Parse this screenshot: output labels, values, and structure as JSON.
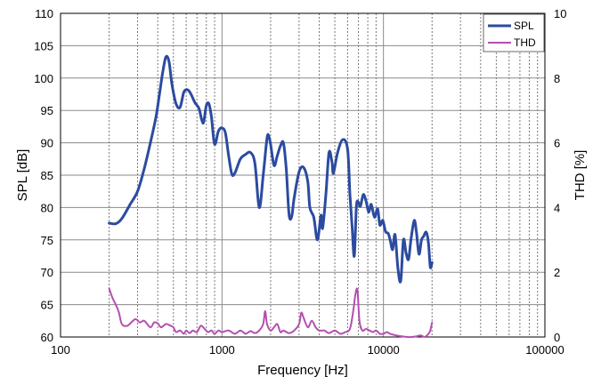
{
  "chart_data": {
    "type": "line",
    "title": "",
    "xlabel": "Frequency [Hz]",
    "ylabel_left": "SPL [dB]",
    "ylabel_right": "THD [%]",
    "x_scale": "log",
    "xlim": [
      100,
      100000
    ],
    "ylim_left": [
      60,
      110
    ],
    "ylim_right": [
      0,
      10
    ],
    "x_ticks": [
      100,
      1000,
      10000,
      100000
    ],
    "x_tick_labels": [
      "100",
      "1000",
      "10000",
      "100000"
    ],
    "y_left_ticks": [
      60,
      65,
      70,
      75,
      80,
      85,
      90,
      95,
      100,
      105,
      110
    ],
    "y_left_tick_labels": [
      "60",
      "65",
      "70",
      "75",
      "80",
      "85",
      "90",
      "95",
      "100",
      "105",
      "110"
    ],
    "y_right_ticks": [
      0,
      2,
      4,
      6,
      8,
      10
    ],
    "y_right_tick_labels": [
      "0",
      "2",
      "4",
      "6",
      "8",
      "10"
    ],
    "grid": true,
    "legend_position": "top-right",
    "series": [
      {
        "name": "SPL",
        "axis": "left",
        "color": "#2b4ba0",
        "points": [
          [
            200,
            77.6
          ],
          [
            220,
            77.5
          ],
          [
            240,
            78.3
          ],
          [
            270,
            80.5
          ],
          [
            300,
            82.5
          ],
          [
            330,
            86
          ],
          [
            360,
            90
          ],
          [
            390,
            94
          ],
          [
            410,
            97.5
          ],
          [
            430,
            101
          ],
          [
            450,
            103.3
          ],
          [
            470,
            102.5
          ],
          [
            490,
            99
          ],
          [
            520,
            96
          ],
          [
            550,
            95.5
          ],
          [
            580,
            97.8
          ],
          [
            610,
            98.2
          ],
          [
            640,
            97.6
          ],
          [
            680,
            96.2
          ],
          [
            720,
            95.3
          ],
          [
            750,
            93.5
          ],
          [
            770,
            93.2
          ],
          [
            800,
            95.8
          ],
          [
            830,
            96
          ],
          [
            860,
            94
          ],
          [
            900,
            89.8
          ],
          [
            950,
            91.8
          ],
          [
            1000,
            92.3
          ],
          [
            1050,
            91.5
          ],
          [
            1100,
            88
          ],
          [
            1150,
            85.2
          ],
          [
            1200,
            85.3
          ],
          [
            1300,
            87.5
          ],
          [
            1400,
            88.2
          ],
          [
            1500,
            88.5
          ],
          [
            1600,
            86.8
          ],
          [
            1700,
            80
          ],
          [
            1800,
            85
          ],
          [
            1900,
            90.7
          ],
          [
            1950,
            91
          ],
          [
            2000,
            89.8
          ],
          [
            2100,
            86.5
          ],
          [
            2200,
            88
          ],
          [
            2300,
            89.5
          ],
          [
            2400,
            90
          ],
          [
            2500,
            86
          ],
          [
            2600,
            79
          ],
          [
            2700,
            78.6
          ],
          [
            2800,
            81.5
          ],
          [
            3000,
            85.5
          ],
          [
            3200,
            86.2
          ],
          [
            3400,
            84
          ],
          [
            3500,
            80
          ],
          [
            3700,
            78.5
          ],
          [
            3900,
            75
          ],
          [
            4100,
            78.8
          ],
          [
            4200,
            76.8
          ],
          [
            4400,
            82
          ],
          [
            4600,
            88.5
          ],
          [
            4800,
            87
          ],
          [
            4900,
            85.3
          ],
          [
            5200,
            88.5
          ],
          [
            5600,
            90.5
          ],
          [
            6000,
            89
          ],
          [
            6200,
            82
          ],
          [
            6400,
            77
          ],
          [
            6600,
            72.5
          ],
          [
            6800,
            80.2
          ],
          [
            7000,
            80.8
          ],
          [
            7200,
            80.2
          ],
          [
            7500,
            82
          ],
          [
            7800,
            81
          ],
          [
            8100,
            79.3
          ],
          [
            8400,
            80.5
          ],
          [
            8800,
            78.5
          ],
          [
            9200,
            79.8
          ],
          [
            9500,
            77.3
          ],
          [
            9900,
            78
          ],
          [
            10300,
            76.3
          ],
          [
            10700,
            76
          ],
          [
            11000,
            75
          ],
          [
            11400,
            73.5
          ],
          [
            11800,
            75.8
          ],
          [
            12300,
            70.5
          ],
          [
            12800,
            68.7
          ],
          [
            13300,
            75
          ],
          [
            13800,
            73
          ],
          [
            14300,
            72
          ],
          [
            14800,
            75
          ],
          [
            15500,
            78
          ],
          [
            16000,
            76.2
          ],
          [
            16600,
            72.8
          ],
          [
            17200,
            75
          ],
          [
            17700,
            75.5
          ],
          [
            18400,
            76.2
          ],
          [
            19000,
            74.5
          ],
          [
            19500,
            70.8
          ],
          [
            20000,
            71.5
          ]
        ]
      },
      {
        "name": "THD",
        "axis": "right",
        "color": "#b44fb0",
        "points": [
          [
            200,
            1.5
          ],
          [
            210,
            1.2
          ],
          [
            220,
            1.0
          ],
          [
            230,
            0.75
          ],
          [
            240,
            0.4
          ],
          [
            260,
            0.35
          ],
          [
            290,
            0.55
          ],
          [
            310,
            0.45
          ],
          [
            330,
            0.5
          ],
          [
            360,
            0.3
          ],
          [
            380,
            0.45
          ],
          [
            400,
            0.42
          ],
          [
            420,
            0.3
          ],
          [
            450,
            0.4
          ],
          [
            480,
            0.35
          ],
          [
            500,
            0.3
          ],
          [
            520,
            0.15
          ],
          [
            550,
            0.2
          ],
          [
            580,
            0.1
          ],
          [
            600,
            0.2
          ],
          [
            630,
            0.12
          ],
          [
            660,
            0.2
          ],
          [
            700,
            0.15
          ],
          [
            740,
            0.35
          ],
          [
            780,
            0.25
          ],
          [
            820,
            0.15
          ],
          [
            860,
            0.2
          ],
          [
            900,
            0.1
          ],
          [
            950,
            0.2
          ],
          [
            1000,
            0.15
          ],
          [
            1100,
            0.2
          ],
          [
            1200,
            0.1
          ],
          [
            1300,
            0.2
          ],
          [
            1400,
            0.1
          ],
          [
            1500,
            0.18
          ],
          [
            1600,
            0.12
          ],
          [
            1700,
            0.2
          ],
          [
            1800,
            0.4
          ],
          [
            1850,
            0.8
          ],
          [
            1900,
            0.4
          ],
          [
            2000,
            0.2
          ],
          [
            2100,
            0.3
          ],
          [
            2200,
            0.4
          ],
          [
            2300,
            0.15
          ],
          [
            2400,
            0.2
          ],
          [
            2600,
            0.12
          ],
          [
            2800,
            0.2
          ],
          [
            3000,
            0.4
          ],
          [
            3100,
            0.75
          ],
          [
            3200,
            0.6
          ],
          [
            3400,
            0.3
          ],
          [
            3600,
            0.5
          ],
          [
            3800,
            0.3
          ],
          [
            4000,
            0.2
          ],
          [
            4300,
            0.2
          ],
          [
            4600,
            0.12
          ],
          [
            5000,
            0.2
          ],
          [
            5400,
            0.1
          ],
          [
            5800,
            0.15
          ],
          [
            6200,
            0.25
          ],
          [
            6500,
            0.8
          ],
          [
            6700,
            1.3
          ],
          [
            6900,
            1.45
          ],
          [
            7100,
            0.5
          ],
          [
            7400,
            0.2
          ],
          [
            7800,
            0.25
          ],
          [
            8200,
            0.2
          ],
          [
            8600,
            0.15
          ],
          [
            9000,
            0.2
          ],
          [
            9500,
            0.1
          ],
          [
            10000,
            0.1
          ],
          [
            10500,
            0.15
          ],
          [
            11000,
            0.1
          ],
          [
            12000,
            0.05
          ],
          [
            13000,
            0.02
          ],
          [
            14000,
            0.0
          ],
          [
            15000,
            0.0
          ],
          [
            16000,
            0.02
          ],
          [
            17000,
            0.05
          ],
          [
            18000,
            0.0
          ],
          [
            19000,
            0.1
          ],
          [
            19500,
            0.2
          ],
          [
            20000,
            0.45
          ]
        ]
      }
    ]
  }
}
